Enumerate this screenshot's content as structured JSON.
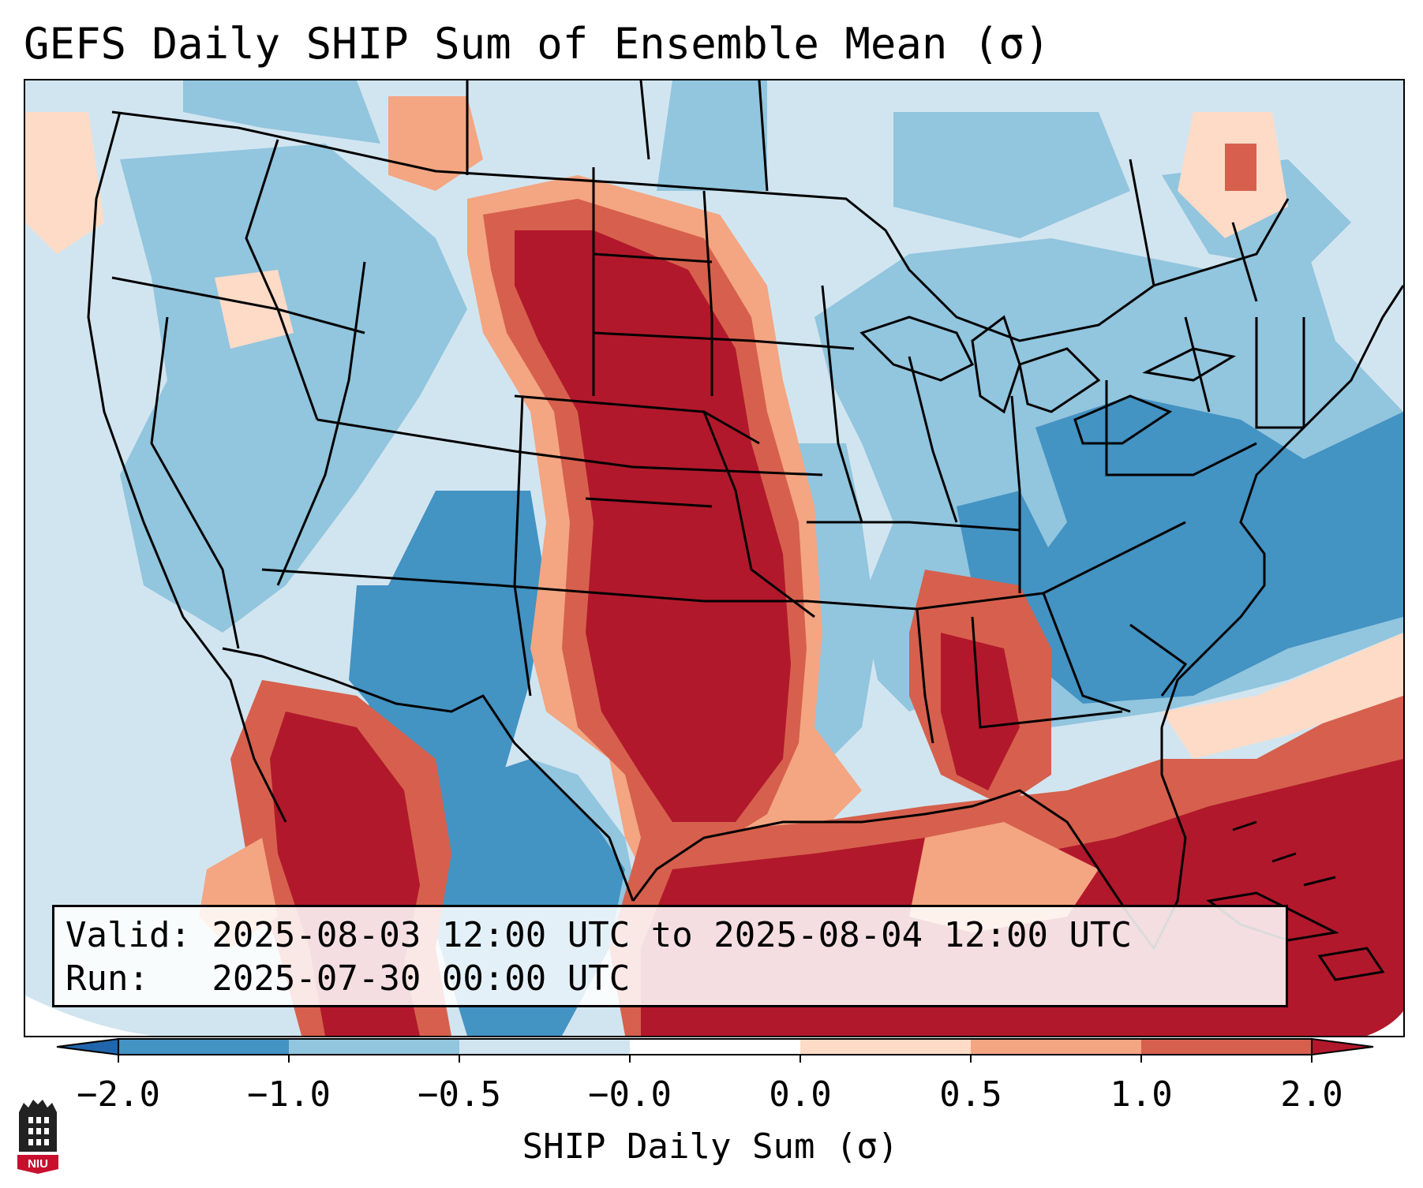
{
  "title": "GEFS Daily SHIP Sum of Ensemble Mean (σ)",
  "info_box": {
    "valid_line": "Valid: 2025-08-03 12:00 UTC to 2025-08-04 12:00 UTC",
    "run_line": "Run:   2025-07-30 00:00 UTC"
  },
  "colorbar": {
    "label": "SHIP Daily Sum (σ)",
    "tick_labels": [
      "−2.0",
      "−1.0",
      "−0.5",
      "−0.0",
      "0.0",
      "0.5",
      "1.0",
      "2.0"
    ],
    "colors": [
      "#2166ac",
      "#4393c3",
      "#92c5de",
      "#d1e5f0",
      "#ffffff",
      "#fddbc7",
      "#f4a582",
      "#d6604d",
      "#b2182b"
    ]
  },
  "logo": {
    "text": "NIU"
  },
  "colors": {
    "strong_negative": "#4393c3",
    "negative": "#92c5de",
    "weak_negative": "#d1e5f0",
    "weak_positive": "#fddbc7",
    "positive": "#f4a582",
    "strong_positive": "#d6604d",
    "extreme_positive": "#b2182b"
  }
}
